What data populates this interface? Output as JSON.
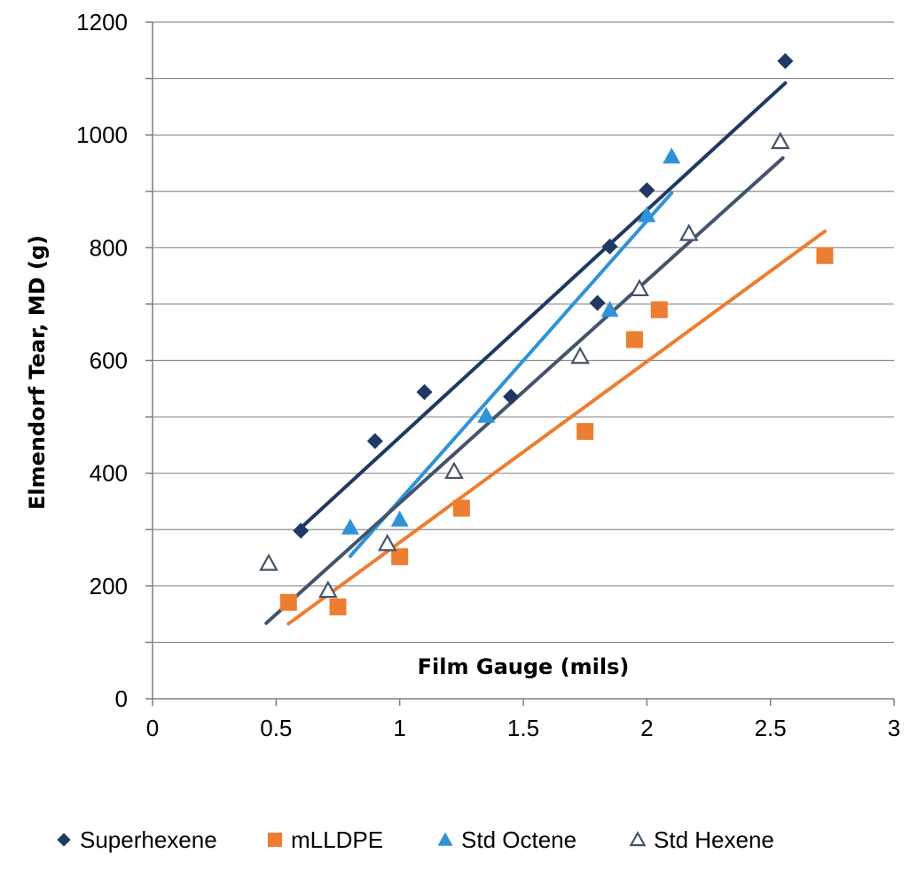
{
  "chart_data": {
    "type": "scatter",
    "title": "",
    "xlabel": "Film Gauge (mils)",
    "ylabel": "Elmendorf Tear, MD (g)",
    "xlim": [
      0,
      3
    ],
    "ylim": [
      0,
      1200
    ],
    "xticks": [
      0,
      0.5,
      1,
      1.5,
      2,
      2.5,
      3
    ],
    "yticks": [
      0,
      200,
      400,
      600,
      800,
      1000,
      1200
    ],
    "xtick_labels": [
      "0",
      "0.5",
      "1",
      "1.5",
      "2",
      "2.5",
      "3"
    ],
    "ytick_labels": [
      "0",
      "200",
      "400",
      "600",
      "800",
      "1000",
      "1200"
    ],
    "grid": "horizontal",
    "legend_position": "bottom",
    "series": [
      {
        "name": "Superhexene",
        "marker": "diamond",
        "color": "#1F3864",
        "points": [
          [
            0.6,
            298
          ],
          [
            0.9,
            457
          ],
          [
            1.1,
            544
          ],
          [
            1.45,
            536
          ],
          [
            1.8,
            702
          ],
          [
            1.85,
            802
          ],
          [
            2.0,
            902
          ],
          [
            2.56,
            1131
          ]
        ],
        "trendline": [
          [
            0.6,
            303
          ],
          [
            2.56,
            1092
          ]
        ]
      },
      {
        "name": "mLLDPE",
        "marker": "square",
        "color": "#ED7D31",
        "points": [
          [
            0.55,
            171
          ],
          [
            0.75,
            163
          ],
          [
            1.0,
            252
          ],
          [
            1.25,
            338
          ],
          [
            1.75,
            474
          ],
          [
            1.95,
            637
          ],
          [
            2.05,
            690
          ],
          [
            2.72,
            786
          ]
        ],
        "trendline": [
          [
            0.55,
            133
          ],
          [
            2.72,
            829
          ]
        ]
      },
      {
        "name": "Std Octene",
        "marker": "triangle",
        "color": "#2E93D8",
        "points": [
          [
            0.8,
            304
          ],
          [
            1.0,
            318
          ],
          [
            1.35,
            502
          ],
          [
            1.85,
            690
          ],
          [
            2.0,
            858
          ],
          [
            2.1,
            962
          ]
        ],
        "trendline": [
          [
            0.8,
            253
          ],
          [
            2.1,
            897
          ]
        ]
      },
      {
        "name": "Std Hexene",
        "marker": "open-triangle",
        "color": "#44546A",
        "points": [
          [
            0.47,
            240
          ],
          [
            0.71,
            192
          ],
          [
            0.95,
            275
          ],
          [
            1.22,
            403
          ],
          [
            1.73,
            607
          ],
          [
            1.97,
            727
          ],
          [
            2.17,
            825
          ],
          [
            2.54,
            988
          ]
        ],
        "trendline": [
          [
            0.46,
            134
          ],
          [
            2.55,
            959
          ]
        ]
      }
    ]
  }
}
